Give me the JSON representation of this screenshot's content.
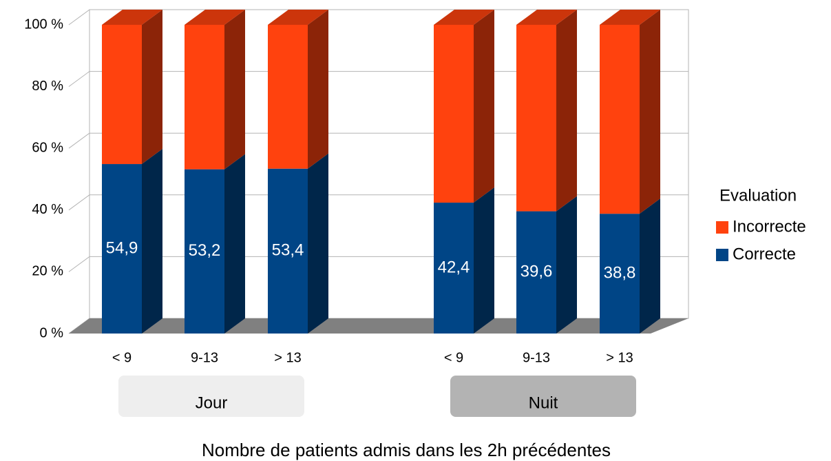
{
  "chart_data": {
    "type": "bar",
    "stacked": true,
    "x_label": "Nombre de patients admis dans les 2h précédentes",
    "groups": [
      {
        "label": "Jour",
        "categories": [
          "< 9",
          "9-13",
          "> 13"
        ]
      },
      {
        "label": "Nuit",
        "categories": [
          "< 9",
          "9-13",
          "> 13"
        ]
      }
    ],
    "series": [
      {
        "name": "Correcte",
        "color": "#004586",
        "values": [
          54.9,
          53.2,
          53.4,
          42.4,
          39.6,
          38.8
        ],
        "value_labels": [
          "54,9",
          "53,2",
          "53,4",
          "42,4",
          "39,6",
          "38,8"
        ]
      },
      {
        "name": "Incorrecte",
        "color": "#ff420e",
        "values": [
          45.1,
          46.8,
          46.6,
          57.6,
          60.4,
          61.2
        ]
      }
    ],
    "legend_title": "Evaluation",
    "legend_position": "right",
    "ylim": [
      0,
      100
    ],
    "yticks": [
      {
        "value": 0,
        "label": "0 %"
      },
      {
        "value": 20,
        "label": "20 %"
      },
      {
        "value": 40,
        "label": "40 %"
      },
      {
        "value": 60,
        "label": "60 %"
      },
      {
        "value": 80,
        "label": "80 %"
      },
      {
        "value": 100,
        "label": "100 %"
      }
    ],
    "grid": true
  }
}
